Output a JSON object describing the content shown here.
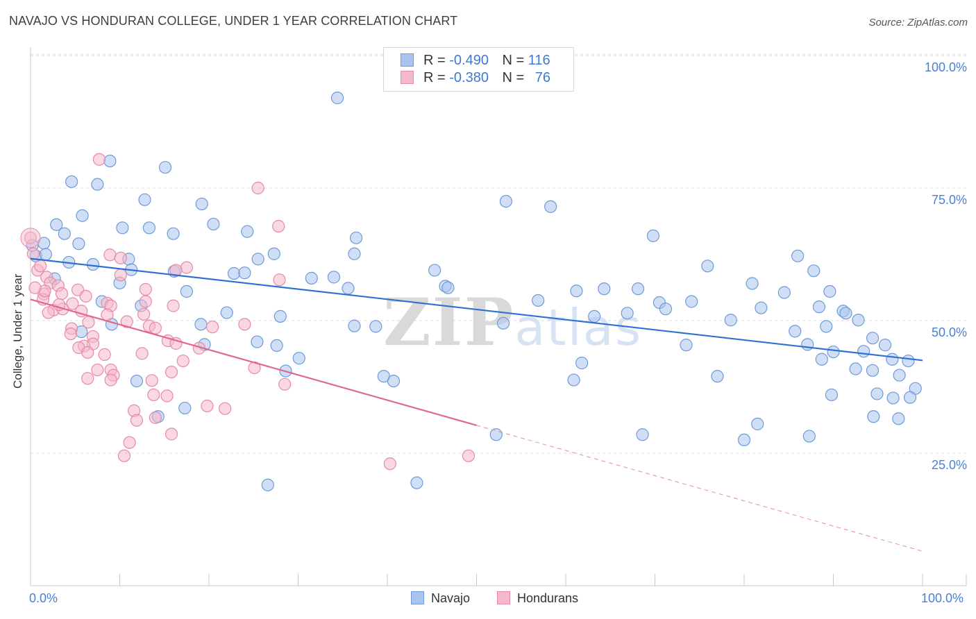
{
  "title": "NAVAJO VS HONDURAN COLLEGE, UNDER 1 YEAR CORRELATION CHART",
  "source": "Source: ZipAtlas.com",
  "watermark": {
    "zip": "ZIP",
    "atlas": "atlas"
  },
  "legend_top": [
    {
      "r_label": "R =",
      "r_value": "-0.490",
      "n_label": "N =",
      "n_value": "116",
      "fill": "#a9c4ee",
      "stroke": "#6f9ad8"
    },
    {
      "r_label": "R =",
      "r_value": "-0.380",
      "n_label": "N =",
      "n_value": "76",
      "fill": "#f6b8cb",
      "stroke": "#e58aa8"
    }
  ],
  "chart_data": {
    "type": "scatter",
    "title": "NAVAJO VS HONDURAN COLLEGE, UNDER 1 YEAR CORRELATION CHART",
    "xlabel": "",
    "ylabel": "College, Under 1 year",
    "xlim": [
      0,
      100
    ],
    "ylim": [
      0,
      105
    ],
    "x_tick_labels": [
      "0.0%",
      "100.0%"
    ],
    "y_ticks": [
      25,
      50,
      75,
      100
    ],
    "y_tick_labels": [
      "25.0%",
      "50.0%",
      "75.0%",
      "100.0%"
    ],
    "grid": true,
    "series": [
      {
        "name": "Navajo",
        "color": "#6f9ad8",
        "fill": "#a9c4ee",
        "trend": {
          "x0": 0,
          "y0": 61.7,
          "x1": 100,
          "y1": 42.5,
          "dashed_from": null
        },
        "points": [
          [
            34.4,
            92.0
          ],
          [
            8.9,
            80.1
          ],
          [
            15.1,
            78.9
          ],
          [
            4.6,
            76.2
          ],
          [
            7.5,
            75.7
          ],
          [
            12.8,
            72.8
          ],
          [
            19.2,
            72.0
          ],
          [
            53.3,
            72.5
          ],
          [
            58.3,
            71.5
          ],
          [
            5.8,
            69.8
          ],
          [
            2.9,
            68.1
          ],
          [
            10.3,
            67.5
          ],
          [
            13.3,
            67.5
          ],
          [
            20.5,
            68.2
          ],
          [
            16.0,
            66.4
          ],
          [
            24.3,
            66.8
          ],
          [
            3.8,
            66.4
          ],
          [
            69.8,
            66.0
          ],
          [
            36.5,
            65.6
          ],
          [
            1.5,
            64.6
          ],
          [
            5.4,
            64.5
          ],
          [
            0.6,
            62.2
          ],
          [
            1.7,
            62.5
          ],
          [
            11.0,
            61.6
          ],
          [
            25.5,
            61.6
          ],
          [
            27.3,
            62.6
          ],
          [
            36.3,
            62.6
          ],
          [
            86.0,
            62.2
          ],
          [
            4.3,
            61.0
          ],
          [
            7.0,
            60.6
          ],
          [
            11.3,
            59.6
          ],
          [
            16.1,
            59.3
          ],
          [
            22.8,
            58.9
          ],
          [
            24.0,
            59.0
          ],
          [
            31.5,
            58.0
          ],
          [
            34.0,
            58.2
          ],
          [
            45.3,
            59.5
          ],
          [
            75.9,
            60.3
          ],
          [
            87.8,
            59.4
          ],
          [
            2.7,
            57.9
          ],
          [
            10.0,
            57.1
          ],
          [
            35.6,
            56.1
          ],
          [
            46.5,
            56.5
          ],
          [
            46.8,
            56.2
          ],
          [
            61.2,
            55.6
          ],
          [
            64.3,
            56.0
          ],
          [
            68.1,
            56.0
          ],
          [
            80.9,
            57.0
          ],
          [
            84.5,
            55.3
          ],
          [
            89.6,
            55.5
          ],
          [
            17.5,
            55.5
          ],
          [
            8.0,
            53.6
          ],
          [
            12.4,
            52.8
          ],
          [
            22.0,
            51.5
          ],
          [
            28.0,
            50.8
          ],
          [
            56.9,
            53.8
          ],
          [
            70.5,
            53.4
          ],
          [
            71.2,
            52.2
          ],
          [
            74.1,
            53.6
          ],
          [
            81.9,
            52.4
          ],
          [
            88.4,
            52.6
          ],
          [
            91.1,
            51.8
          ],
          [
            91.4,
            51.4
          ],
          [
            63.2,
            50.8
          ],
          [
            66.9,
            51.4
          ],
          [
            78.5,
            50.1
          ],
          [
            92.8,
            50.1
          ],
          [
            9.1,
            49.3
          ],
          [
            19.1,
            49.3
          ],
          [
            36.3,
            49.0
          ],
          [
            38.7,
            48.9
          ],
          [
            53.0,
            49.5
          ],
          [
            85.7,
            48.0
          ],
          [
            89.2,
            48.9
          ],
          [
            5.7,
            47.9
          ],
          [
            94.4,
            46.7
          ],
          [
            19.5,
            45.5
          ],
          [
            25.4,
            46.0
          ],
          [
            27.6,
            45.3
          ],
          [
            73.5,
            45.4
          ],
          [
            87.1,
            45.5
          ],
          [
            95.8,
            45.4
          ],
          [
            90.0,
            44.1
          ],
          [
            93.4,
            44.2
          ],
          [
            88.7,
            42.7
          ],
          [
            30.1,
            42.9
          ],
          [
            92.5,
            40.9
          ],
          [
            94.4,
            40.6
          ],
          [
            96.6,
            42.7
          ],
          [
            98.4,
            42.4
          ],
          [
            61.8,
            42.0
          ],
          [
            28.6,
            40.5
          ],
          [
            39.6,
            39.5
          ],
          [
            40.7,
            38.6
          ],
          [
            60.9,
            38.8
          ],
          [
            77.0,
            39.5
          ],
          [
            11.9,
            38.6
          ],
          [
            97.4,
            39.7
          ],
          [
            99.2,
            37.2
          ],
          [
            89.8,
            36.0
          ],
          [
            94.9,
            36.2
          ],
          [
            96.7,
            35.4
          ],
          [
            98.6,
            35.5
          ],
          [
            14.3,
            31.9
          ],
          [
            17.3,
            33.5
          ],
          [
            94.5,
            31.9
          ],
          [
            97.3,
            31.5
          ],
          [
            81.5,
            30.5
          ],
          [
            52.2,
            28.5
          ],
          [
            68.6,
            28.5
          ],
          [
            80.0,
            27.5
          ],
          [
            87.3,
            28.2
          ],
          [
            26.6,
            19.0
          ],
          [
            43.3,
            19.4
          ],
          [
            0.2,
            64.2
          ]
        ]
      },
      {
        "name": "Hondurans",
        "color": "#e58aa8",
        "fill": "#f6b8cb",
        "trend": {
          "x0": 0,
          "y0": 54.0,
          "x1": 100,
          "y1": 6.5,
          "dashed_from": 50
        },
        "points": [
          [
            7.7,
            80.4
          ],
          [
            25.5,
            75.0
          ],
          [
            27.8,
            67.8
          ],
          [
            0.0,
            65.6
          ],
          [
            0.3,
            62.6
          ],
          [
            8.9,
            62.4
          ],
          [
            0.8,
            59.5
          ],
          [
            1.1,
            60.3
          ],
          [
            10.1,
            61.8
          ],
          [
            17.5,
            60.0
          ],
          [
            1.8,
            58.2
          ],
          [
            10.1,
            58.6
          ],
          [
            16.3,
            59.5
          ],
          [
            27.9,
            57.7
          ],
          [
            2.2,
            57.1
          ],
          [
            1.5,
            55.0
          ],
          [
            3.1,
            56.6
          ],
          [
            5.3,
            55.8
          ],
          [
            12.9,
            55.9
          ],
          [
            3.5,
            55.1
          ],
          [
            6.2,
            54.6
          ],
          [
            8.6,
            53.3
          ],
          [
            12.9,
            53.6
          ],
          [
            4.7,
            53.2
          ],
          [
            2.6,
            52.0
          ],
          [
            3.6,
            52.2
          ],
          [
            5.7,
            51.8
          ],
          [
            9.0,
            52.8
          ],
          [
            16.0,
            52.8
          ],
          [
            8.6,
            51.1
          ],
          [
            12.7,
            51.2
          ],
          [
            1.4,
            54.0
          ],
          [
            6.5,
            49.7
          ],
          [
            10.8,
            49.8
          ],
          [
            4.6,
            48.5
          ],
          [
            13.3,
            49.0
          ],
          [
            14.0,
            48.6
          ],
          [
            20.4,
            48.8
          ],
          [
            24.0,
            49.3
          ],
          [
            4.5,
            47.5
          ],
          [
            7.0,
            47.0
          ],
          [
            15.4,
            46.2
          ],
          [
            16.3,
            45.7
          ],
          [
            7.0,
            45.6
          ],
          [
            6.0,
            45.2
          ],
          [
            5.4,
            44.9
          ],
          [
            18.9,
            44.8
          ],
          [
            6.4,
            44.0
          ],
          [
            12.5,
            43.8
          ],
          [
            8.3,
            43.6
          ],
          [
            17.1,
            42.4
          ],
          [
            7.5,
            40.7
          ],
          [
            9.0,
            40.7
          ],
          [
            15.8,
            40.3
          ],
          [
            25.1,
            41.1
          ],
          [
            9.3,
            39.7
          ],
          [
            6.4,
            39.1
          ],
          [
            9.0,
            38.8
          ],
          [
            13.6,
            38.7
          ],
          [
            28.5,
            38.0
          ],
          [
            13.8,
            36.0
          ],
          [
            15.3,
            35.8
          ],
          [
            11.6,
            33.0
          ],
          [
            19.8,
            33.9
          ],
          [
            21.8,
            33.4
          ],
          [
            11.9,
            31.2
          ],
          [
            14.0,
            31.7
          ],
          [
            15.8,
            28.6
          ],
          [
            11.1,
            27.0
          ],
          [
            10.5,
            24.5
          ],
          [
            40.3,
            23.0
          ],
          [
            49.1,
            24.5
          ],
          [
            1.6,
            55.6
          ],
          [
            3.2,
            53.0
          ],
          [
            2.0,
            51.5
          ],
          [
            0.5,
            56.2
          ]
        ]
      }
    ]
  },
  "bottom_legend": [
    {
      "label": "Navajo",
      "fill": "#a9c4ee",
      "stroke": "#6f9ad8"
    },
    {
      "label": "Hondurans",
      "fill": "#f6b8cb",
      "stroke": "#e58aa8"
    }
  ]
}
